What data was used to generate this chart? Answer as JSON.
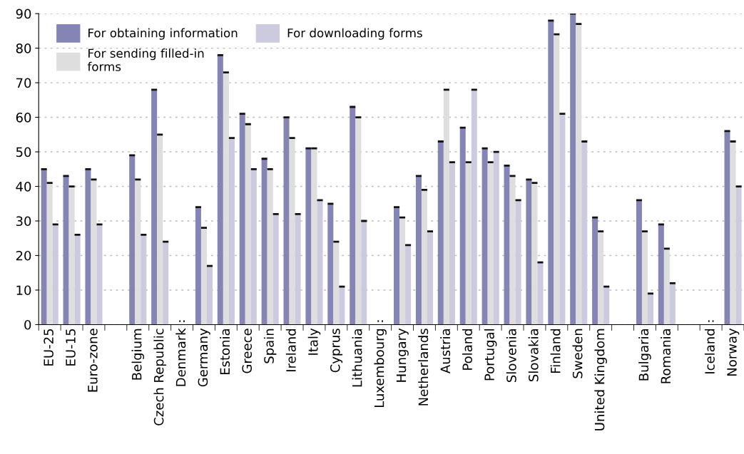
{
  "chart_data": {
    "type": "bar",
    "categories": [
      "EU-25",
      "EU-15",
      "Euro-zone",
      null,
      "Belgium",
      "Czech Republic",
      "Denmark",
      "Germany",
      "Estonia",
      "Greece",
      "Spain",
      "Ireland",
      "Italy",
      "Cyprus",
      "Lithuania",
      "Luxembourg",
      "Hungary",
      "Netherlands",
      "Austria",
      "Poland",
      "Portugal",
      "Slovenia",
      "Slovakia",
      "Finland",
      "Sweden",
      "United Kingdom",
      null,
      "Bulgaria",
      "Romania",
      null,
      "Iceland",
      "Norway"
    ],
    "series": [
      {
        "name": "For obtaining information",
        "color": "#8585b5",
        "values": [
          45,
          43,
          45,
          null,
          49,
          68,
          null,
          34,
          78,
          61,
          48,
          60,
          51,
          35,
          63,
          null,
          34,
          43,
          53,
          57,
          51,
          46,
          42,
          88,
          90,
          31,
          null,
          36,
          29,
          null,
          null,
          56
        ]
      },
      {
        "name": "For sending filled-in forms",
        "color": "#dedede",
        "values": [
          41,
          40,
          42,
          null,
          42,
          55,
          null,
          28,
          73,
          58,
          45,
          54,
          51,
          24,
          60,
          null,
          31,
          39,
          68,
          47,
          47,
          43,
          41,
          84,
          87,
          27,
          null,
          27,
          22,
          null,
          null,
          53
        ]
      },
      {
        "name": "For downloading forms",
        "color": "#cccadf",
        "values": [
          29,
          26,
          29,
          null,
          26,
          24,
          null,
          17,
          54,
          45,
          32,
          32,
          36,
          11,
          30,
          null,
          23,
          27,
          47,
          68,
          50,
          36,
          18,
          61,
          53,
          11,
          null,
          9,
          12,
          null,
          null,
          40
        ]
      }
    ],
    "annotations": [
      "..",
      "..",
      ".."
    ],
    "ylim": [
      0,
      90
    ],
    "yticks": [
      0,
      10,
      20,
      30,
      40,
      50,
      60,
      70,
      80,
      90
    ],
    "grid": "y",
    "legend": "top left"
  }
}
